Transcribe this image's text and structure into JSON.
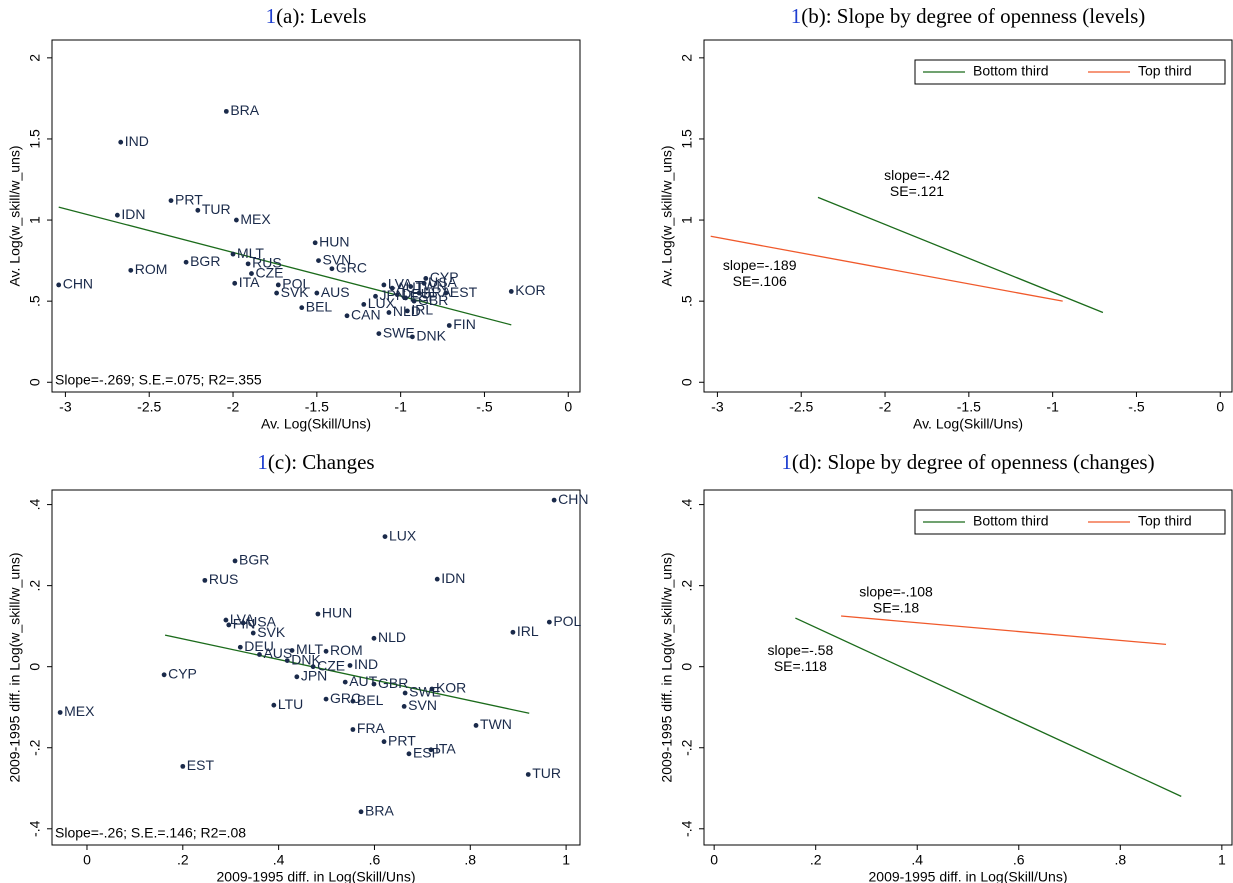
{
  "chart_data": [
    {
      "type": "scatter",
      "title_ref": "1",
      "title": "(a): Levels",
      "x_label": "Av. Log(Skill/Uns)",
      "y_label": "Av. Log(w_skill/w_uns)",
      "xlim": [
        -3.08,
        0.07
      ],
      "ylim": [
        -0.06,
        2.11
      ],
      "xticks": [
        -3,
        {
          "value": -2.5,
          "label": "-2.5"
        },
        -2,
        {
          "value": -1.5,
          "label": "-1.5"
        },
        -1,
        {
          "value": -0.5,
          "label": "-.5"
        },
        0
      ],
      "yticks": [
        0,
        {
          "value": 0.5,
          "label": ".5"
        },
        1,
        1.5,
        2
      ],
      "point_color": "#1a2a4a",
      "point_labels": [
        "BRA",
        "IND",
        "IDN",
        "PRT",
        "TUR",
        "MEX",
        "CHN",
        "ROM",
        "BGR",
        "MLT",
        "RUS",
        "CZE",
        "ITA",
        "POL",
        "SVK",
        "AUS",
        "HUN",
        "SVN",
        "GRC",
        "BEL",
        "CAN",
        "LUX",
        "SWE",
        "DNK",
        "FIN",
        "EST",
        "KOR",
        "CYP",
        "JPN",
        "LVA",
        "USA",
        "AUT",
        "DEU",
        "ESP",
        "FRA",
        "GBR",
        "IRL",
        "NLD",
        "TWN"
      ],
      "x": [
        -2.04,
        -2.67,
        -2.69,
        -2.37,
        -2.21,
        -1.98,
        -3.04,
        -2.61,
        -2.28,
        -2.0,
        -1.91,
        -1.89,
        -1.99,
        -1.73,
        -1.74,
        -1.5,
        -1.51,
        -1.49,
        -1.41,
        -1.59,
        -1.32,
        -1.22,
        -1.13,
        -0.93,
        -0.71,
        -0.73,
        -0.34,
        -0.85,
        -1.15,
        -1.1,
        -0.86,
        -1.05,
        -1.02,
        -0.97,
        -0.89,
        -0.92,
        -0.96,
        -1.07,
        -0.94
      ],
      "values": [
        1.67,
        1.48,
        1.03,
        1.12,
        1.06,
        1.0,
        0.6,
        0.69,
        0.74,
        0.79,
        0.73,
        0.67,
        0.61,
        0.6,
        0.55,
        0.55,
        0.86,
        0.75,
        0.7,
        0.46,
        0.41,
        0.48,
        0.3,
        0.28,
        0.35,
        0.55,
        0.56,
        0.64,
        0.53,
        0.6,
        0.61,
        0.58,
        0.54,
        0.52,
        0.55,
        0.5,
        0.44,
        0.43,
        0.59
      ],
      "fit_line": {
        "color": "#1b6b1b",
        "x": [
          -3.04,
          -0.34
        ],
        "values": [
          1.08,
          0.354
        ]
      },
      "note": "Slope=-.269; S.E.=.075; R2=.355"
    },
    {
      "type": "line",
      "title_ref": "1",
      "title": "(b): Slope by degree of openness (levels)",
      "x_label": "Av. Log(Skill/Uns)",
      "y_label": "Av. Log(w_skill/w_uns)",
      "xlim": [
        -3.08,
        0.07
      ],
      "ylim": [
        -0.06,
        2.11
      ],
      "xticks": [
        -3,
        {
          "value": -2.5,
          "label": "-2.5"
        },
        -2,
        {
          "value": -1.5,
          "label": "-1.5"
        },
        -1,
        {
          "value": -0.5,
          "label": "-.5"
        },
        0
      ],
      "yticks": [
        0,
        {
          "value": 0.5,
          "label": ".5"
        },
        1,
        1.5,
        2
      ],
      "legend": "top-right",
      "series": [
        {
          "name": "Bottom third",
          "color": "#1b6b1b",
          "x": [
            -2.4,
            -0.7
          ],
          "values": [
            1.14,
            0.43
          ],
          "slope_label": "slope=-.42",
          "se_label": "SE=.121"
        },
        {
          "name": "Top third",
          "color": "#f0592b",
          "x": [
            -3.04,
            -0.94
          ],
          "values": [
            0.9,
            0.5
          ],
          "slope_label": "slope=-.189",
          "se_label": "SE=.106"
        }
      ]
    },
    {
      "type": "scatter",
      "title_ref": "1",
      "title": "(c): Changes",
      "x_label": "2009-1995 diff. in Log(Skill/Uns)",
      "y_label": "2009-1995 diff. in Log(w_skill/w_uns)",
      "xlim": [
        -0.073,
        1.029
      ],
      "ylim": [
        -0.44,
        0.436
      ],
      "xticks": [
        0,
        {
          "value": 0.2,
          "label": ".2"
        },
        {
          "value": 0.4,
          "label": ".4"
        },
        {
          "value": 0.6,
          "label": ".6"
        },
        {
          "value": 0.8,
          "label": ".8"
        },
        1
      ],
      "yticks": [
        {
          "value": -0.4,
          "label": "-.4"
        },
        {
          "value": -0.2,
          "label": "-.2"
        },
        0,
        {
          "value": 0.2,
          "label": ".2"
        },
        {
          "value": 0.4,
          "label": ".4"
        }
      ],
      "point_color": "#1a2a4a",
      "point_labels": [
        "CHN",
        "LUX",
        "IDN",
        "BGR",
        "RUS",
        "HUN",
        "POL",
        "IRL",
        "NLD",
        "LVA",
        "FIN",
        "USA",
        "SVK",
        "DEU",
        "AUS",
        "MLT",
        "ROM",
        "DNK",
        "CZE",
        "IND",
        "CYP",
        "MEX",
        "JPN",
        "AUT",
        "GBR",
        "SWE",
        "KOR",
        "GRC",
        "BEL",
        "SVN",
        "LTU",
        "TWN",
        "FRA",
        "PRT",
        "ITA",
        "ESP",
        "EST",
        "TUR",
        "BRA"
      ],
      "x": [
        0.975,
        0.622,
        0.731,
        0.309,
        0.246,
        0.482,
        0.965,
        0.889,
        0.599,
        0.29,
        0.296,
        0.326,
        0.347,
        0.32,
        0.36,
        0.428,
        0.499,
        0.418,
        0.472,
        0.549,
        0.161,
        -0.056,
        0.438,
        0.539,
        0.599,
        0.664,
        0.72,
        0.499,
        0.555,
        0.662,
        0.39,
        0.812,
        0.555,
        0.62,
        0.718,
        0.672,
        0.2,
        0.921,
        0.572
      ],
      "values": [
        0.411,
        0.321,
        0.216,
        0.261,
        0.213,
        0.13,
        0.11,
        0.085,
        0.07,
        0.115,
        0.103,
        0.108,
        0.083,
        0.048,
        0.03,
        0.04,
        0.038,
        0.015,
        0.0,
        0.003,
        -0.02,
        -0.113,
        -0.025,
        -0.038,
        -0.043,
        -0.065,
        -0.055,
        -0.08,
        -0.085,
        -0.098,
        -0.095,
        -0.145,
        -0.155,
        -0.185,
        -0.205,
        -0.215,
        -0.246,
        -0.266,
        -0.358
      ],
      "fit_line": {
        "color": "#1b6b1b",
        "x": [
          0.163,
          0.923
        ],
        "values": [
          0.078,
          -0.115
        ]
      },
      "note": "Slope=-.26; S.E.=.146; R2=.08"
    },
    {
      "type": "line",
      "title_ref": "1",
      "title": "(d): Slope by degree of openness (changes)",
      "x_label": "2009-1995 diff. in Log(Skill/Uns)",
      "y_label": "2009-1995 diff. in Log(w_skill/w_uns)",
      "xlim": [
        -0.02,
        1.02
      ],
      "ylim": [
        -0.44,
        0.436
      ],
      "xticks": [
        0,
        {
          "value": 0.2,
          "label": ".2"
        },
        {
          "value": 0.4,
          "label": ".4"
        },
        {
          "value": 0.6,
          "label": ".6"
        },
        {
          "value": 0.8,
          "label": ".8"
        },
        1
      ],
      "yticks": [
        {
          "value": -0.4,
          "label": "-.4"
        },
        {
          "value": -0.2,
          "label": "-.2"
        },
        0,
        {
          "value": 0.2,
          "label": ".2"
        },
        {
          "value": 0.4,
          "label": ".4"
        }
      ],
      "legend": "top-right",
      "series": [
        {
          "name": "Bottom third",
          "color": "#1b6b1b",
          "x": [
            0.16,
            0.92
          ],
          "values": [
            0.12,
            -0.32
          ],
          "slope_label": "slope=-.58",
          "se_label": "SE=.118"
        },
        {
          "name": "Top third",
          "color": "#f0592b",
          "x": [
            0.25,
            0.89
          ],
          "values": [
            0.125,
            0.055
          ],
          "slope_label": "slope=-.108",
          "se_label": "SE=.18"
        }
      ]
    }
  ]
}
